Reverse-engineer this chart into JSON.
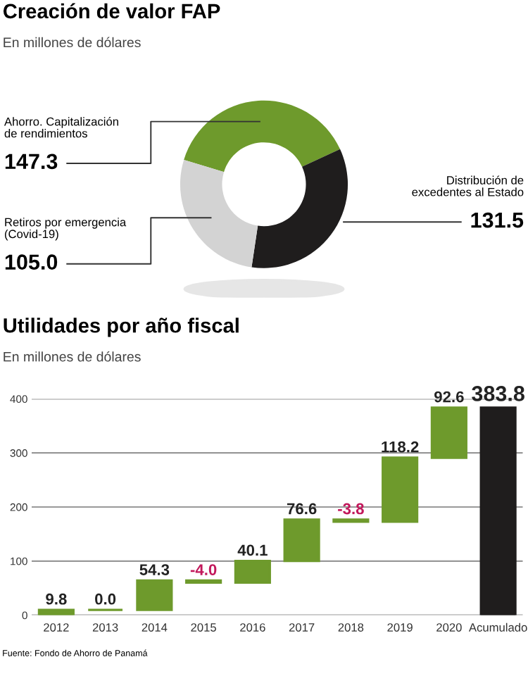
{
  "chart_data": [
    {
      "type": "donut",
      "title": "Creación de valor FAP",
      "subtitle": "En millones de dólares",
      "categories": [
        "Ahorro. Capitalización de rendimientos",
        "Distribución de excedentes al Estado",
        "Retiros por emergencia (Covid-19)"
      ],
      "values": [
        147.3,
        131.5,
        105.0
      ],
      "value_labels": [
        "147.3",
        "131.5",
        "105.0"
      ],
      "colors": [
        "#6e9a2c",
        "#1f1d1d",
        "#d3d3d3"
      ]
    },
    {
      "type": "bar",
      "title": "Utilidades por año fiscal",
      "subtitle": "En millones de dólares",
      "categories": [
        "2012",
        "2013",
        "2014",
        "2015",
        "2016",
        "2017",
        "2018",
        "2019",
        "2020",
        "Acumulado"
      ],
      "values": [
        9.8,
        0.0,
        54.3,
        -4.0,
        40.1,
        76.6,
        -3.8,
        118.2,
        92.6,
        383.8
      ],
      "value_labels": [
        "9.8",
        "0.0",
        "54.3",
        "-4.0",
        "40.1",
        "76.6",
        "-3.8",
        "118.2",
        "92.6",
        "383.8"
      ],
      "base": [
        0,
        9.8,
        9.8,
        64.1,
        60.1,
        100.2,
        176.8,
        173.0,
        291.2,
        0
      ],
      "colors": [
        "#6e9a2c",
        "#6e9a2c",
        "#6e9a2c",
        "#6e9a2c",
        "#6e9a2c",
        "#6e9a2c",
        "#6e9a2c",
        "#6e9a2c",
        "#6e9a2c",
        "#1f1d1d"
      ],
      "data_labels": true,
      "ylim": [
        0,
        400
      ],
      "yticks": [
        0,
        100,
        200,
        300,
        400
      ],
      "grid": "y",
      "annotations": [
        "Fuente: Fondo de Ahorro de Panamá"
      ]
    }
  ]
}
